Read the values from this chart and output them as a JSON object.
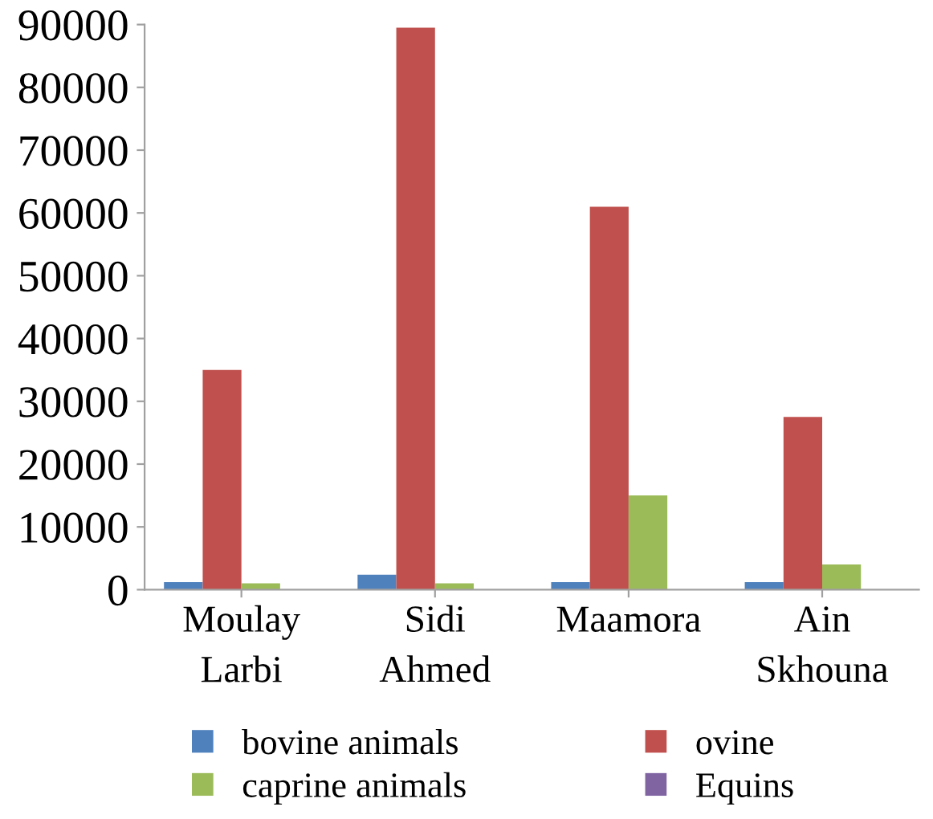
{
  "chart_data": {
    "type": "bar",
    "categories": [
      "Moulay\nLarbi",
      "Sidi\nAhmed",
      "Maamora",
      "Ain\nSkhouna"
    ],
    "series": [
      {
        "name": "bovine animals",
        "color": "#4f81bd",
        "values": [
          1200,
          2400,
          1200,
          1200
        ]
      },
      {
        "name": "ovine",
        "color": "#c0504d",
        "values": [
          35000,
          89500,
          61000,
          27500
        ]
      },
      {
        "name": "caprine animals",
        "color": "#9bbb59",
        "values": [
          1000,
          1000,
          15000,
          4000
        ]
      },
      {
        "name": "Equins",
        "color": "#8064a2",
        "values": [
          null,
          null,
          null,
          null
        ]
      }
    ],
    "ylim": [
      0,
      90000
    ],
    "yticks": [
      0,
      10000,
      20000,
      30000,
      40000,
      50000,
      60000,
      70000,
      80000,
      90000
    ],
    "grid": false,
    "legend": "bottom"
  }
}
